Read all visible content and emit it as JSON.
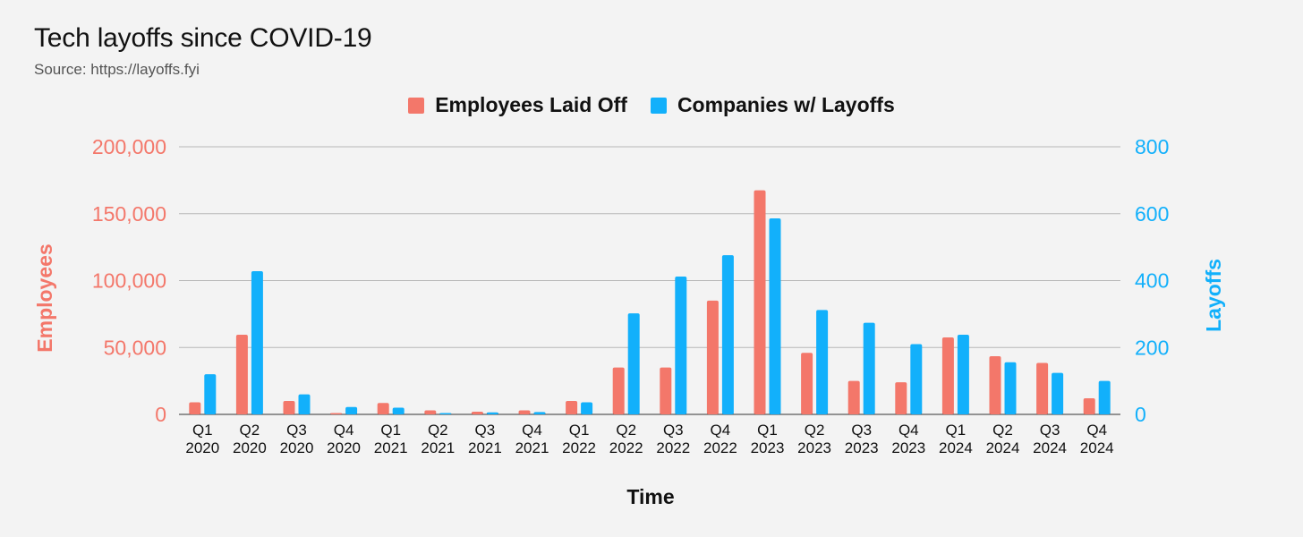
{
  "title": "Tech layoffs since COVID-19",
  "subtitle": "Source: https://layoffs.fyi",
  "colors": {
    "employees": "#f3776a",
    "companies": "#12b0fb",
    "grid": "#b7b7b7"
  },
  "chart_data": {
    "type": "bar",
    "title": "Tech layoffs since COVID-19",
    "xlabel": "Time",
    "ylabel": "Employees",
    "y2label": "Layoffs",
    "categories": [
      [
        "Q1",
        "2020"
      ],
      [
        "Q2",
        "2020"
      ],
      [
        "Q3",
        "2020"
      ],
      [
        "Q4",
        "2020"
      ],
      [
        "Q1",
        "2021"
      ],
      [
        "Q2",
        "2021"
      ],
      [
        "Q3",
        "2021"
      ],
      [
        "Q4",
        "2021"
      ],
      [
        "Q1",
        "2022"
      ],
      [
        "Q2",
        "2022"
      ],
      [
        "Q3",
        "2022"
      ],
      [
        "Q4",
        "2022"
      ],
      [
        "Q1",
        "2023"
      ],
      [
        "Q2",
        "2023"
      ],
      [
        "Q3",
        "2023"
      ],
      [
        "Q4",
        "2023"
      ],
      [
        "Q1",
        "2024"
      ],
      [
        "Q2",
        "2024"
      ],
      [
        "Q3",
        "2024"
      ],
      [
        "Q4",
        "2024"
      ]
    ],
    "ylim": [
      0,
      200000
    ],
    "y2lim": [
      0,
      800
    ],
    "yticks": [
      "0",
      "50,000",
      "100,000",
      "150,000",
      "200,000"
    ],
    "y2ticks": [
      "0",
      "200",
      "400",
      "600",
      "800"
    ],
    "grid": true,
    "legend_position": "top",
    "series": [
      {
        "name": "Employees Laid Off",
        "axis": "left",
        "values": [
          9000,
          59500,
          10000,
          1000,
          8500,
          3000,
          2000,
          3000,
          10000,
          35000,
          35000,
          85000,
          167500,
          46000,
          25000,
          24000,
          57500,
          43500,
          38500,
          12000
        ]
      },
      {
        "name": "Companies w/ Layoffs",
        "axis": "right",
        "values": [
          120,
          428,
          60,
          22,
          20,
          4,
          6,
          7,
          36,
          302,
          412,
          476,
          586,
          312,
          274,
          210,
          238,
          156,
          124,
          100
        ]
      }
    ]
  }
}
